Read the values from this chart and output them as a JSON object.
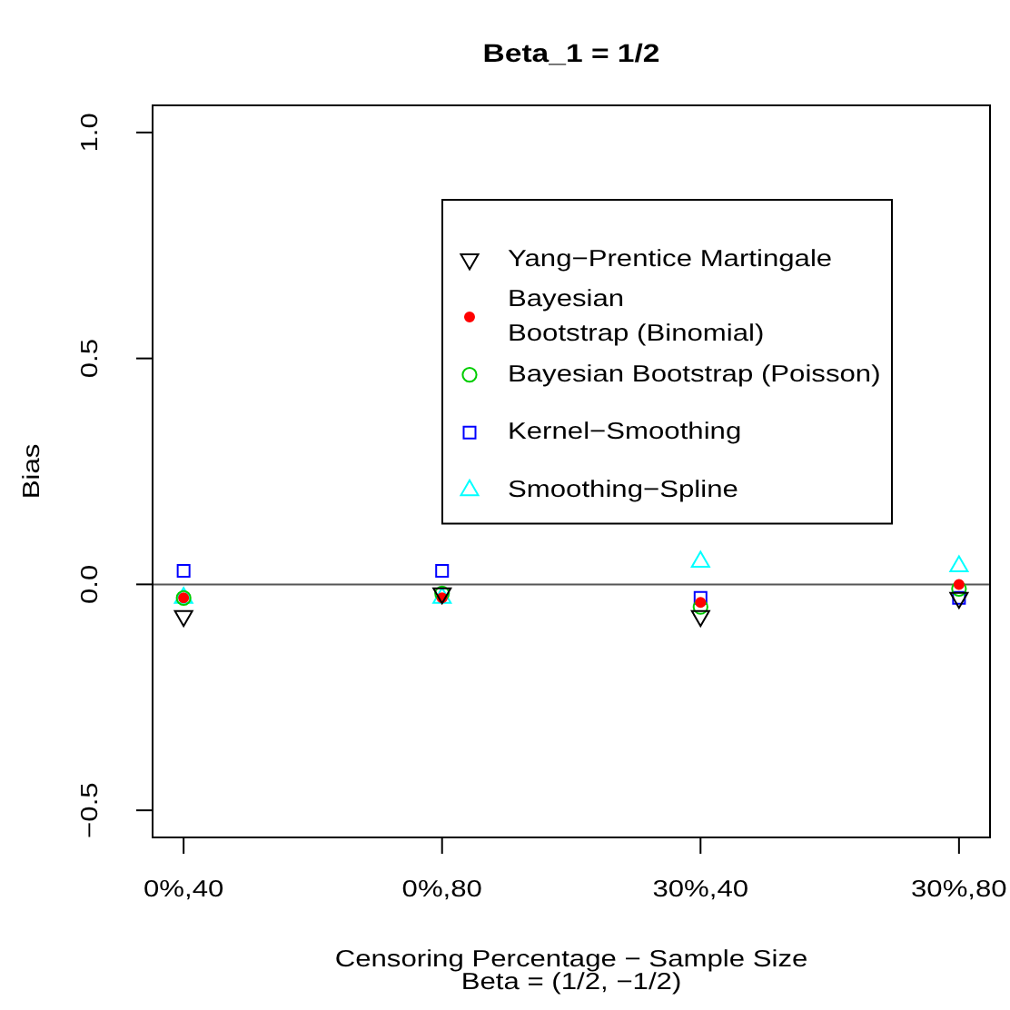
{
  "chart_data": {
    "type": "scatter",
    "title": "Beta_1 = 1/2",
    "subtitle": "Beta = (1/2, −1/2)",
    "xlabel": "Censoring Percentage − Sample Size",
    "ylabel": "Bias",
    "categories": [
      "0%,40",
      "0%,80",
      "30%,40",
      "30%,80"
    ],
    "series": [
      {
        "name": "Yang−Prentice Martingale",
        "color": "#000000",
        "marker": "triangle-down",
        "values": [
          -0.07,
          -0.02,
          -0.07,
          -0.03
        ]
      },
      {
        "name": "Bayesian\nBootstrap (Binomial)",
        "color": "#ff0000",
        "marker": "dot",
        "values": [
          -0.03,
          -0.03,
          -0.04,
          0.0
        ]
      },
      {
        "name": "Bayesian Bootstrap (Poisson)",
        "color": "#00cd00",
        "marker": "circle",
        "values": [
          -0.03,
          -0.02,
          -0.05,
          -0.01
        ]
      },
      {
        "name": "Kernel−Smoothing",
        "color": "#0000ff",
        "marker": "square",
        "values": [
          0.03,
          0.03,
          -0.03,
          -0.03
        ]
      },
      {
        "name": "Smoothing−Spline",
        "color": "#00ffff",
        "marker": "triangle",
        "values": [
          -0.03,
          -0.03,
          0.05,
          0.04
        ]
      }
    ],
    "ylim": [
      -0.56,
      1.06
    ],
    "yticks": [
      {
        "value": -0.5,
        "label": "−0.5"
      },
      {
        "value": 0,
        "label": "0.0"
      },
      {
        "value": 0.5,
        "label": "0.5"
      },
      {
        "value": 1,
        "label": "1.0"
      }
    ],
    "ref_lines": [
      {
        "axis": "y",
        "value": 0,
        "color": "#555555"
      }
    ],
    "legend": "top right"
  }
}
